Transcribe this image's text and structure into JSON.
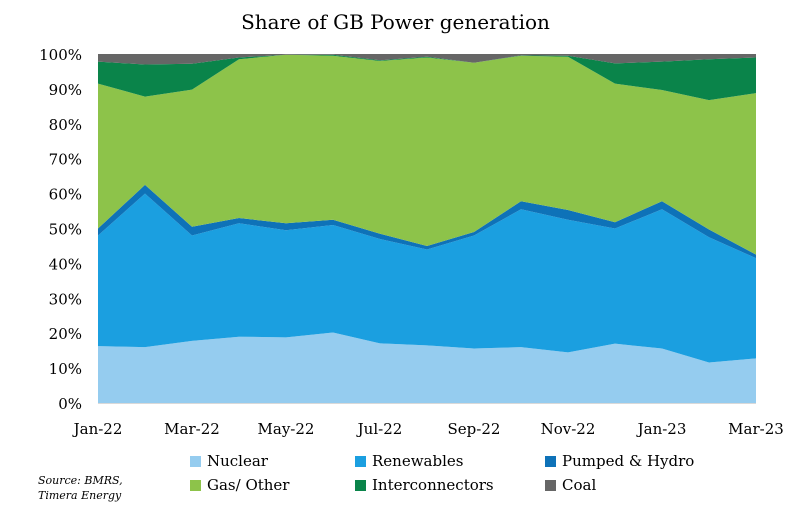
{
  "chart_data": {
    "type": "area",
    "stacked": true,
    "title": "Share of GB Power generation",
    "categories": [
      "Jan-22",
      "Feb-22",
      "Mar-22",
      "Apr-22",
      "May-22",
      "Jun-22",
      "Jul-22",
      "Aug-22",
      "Sep-22",
      "Oct-22",
      "Nov-22",
      "Dec-22",
      "Jan-23",
      "Feb-23",
      "Mar-23"
    ],
    "x_tick_labels": [
      "Jan-22",
      "Mar-22",
      "May-22",
      "Jul-22",
      "Sep-22",
      "Nov-22",
      "Jan-23",
      "Mar-23"
    ],
    "y_tick_labels": [
      "0%",
      "10%",
      "20%",
      "30%",
      "40%",
      "50%",
      "60%",
      "70%",
      "80%",
      "90%",
      "100%"
    ],
    "ylim": [
      0,
      100
    ],
    "y_unit": "%",
    "grid": false,
    "legend_position": "bottom",
    "series": [
      {
        "name": "Nuclear",
        "color": "#95ccef",
        "values": [
          16.3,
          16,
          17.8,
          19,
          18.8,
          20.2,
          17.1,
          16.5,
          15.6,
          16,
          14.5,
          17,
          15.6,
          11.6,
          12.8
        ]
      },
      {
        "name": "Renewables",
        "color": "#1b9fe0",
        "values": [
          31.7,
          44,
          30.2,
          32.5,
          30.7,
          30.8,
          29.9,
          27.5,
          32.4,
          39.5,
          38,
          33,
          39.9,
          35.9,
          28.7
        ]
      },
      {
        "name": "Pumped & Hydro",
        "color": "#0e72b8",
        "values": [
          2,
          2.5,
          2.5,
          1.5,
          2,
          1.5,
          1.5,
          1,
          1,
          2.3,
          2.8,
          1.8,
          2.3,
          2.2,
          1
        ]
      },
      {
        "name": "Gas/ Other",
        "color": "#8dc34a",
        "values": [
          41.5,
          25.3,
          39.3,
          45.5,
          48.3,
          47,
          49.5,
          54,
          48.5,
          41.7,
          43.9,
          39.7,
          31.9,
          37.1,
          46.3
        ]
      },
      {
        "name": "Interconnectors",
        "color": "#0a844a",
        "values": [
          6.3,
          9.2,
          7.4,
          0.5,
          0,
          0.3,
          0.2,
          0.2,
          0,
          0.1,
          0.3,
          5.8,
          8.1,
          11.7,
          10.2
        ]
      },
      {
        "name": "Coal",
        "color": "#666666",
        "values": [
          2.2,
          3,
          2.8,
          1,
          0.2,
          0.2,
          1.8,
          0.8,
          2.5,
          0.4,
          0.5,
          2.7,
          2.2,
          1.5,
          1.0
        ]
      }
    ],
    "source": [
      "Source: BMRS,",
      "Timera Energy"
    ]
  }
}
